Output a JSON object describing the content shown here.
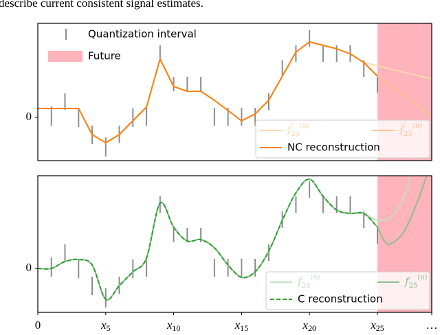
{
  "text_above": "describe current consistent signal estimates.",
  "chart_data": [
    {
      "type": "line",
      "xlim": [
        0,
        29
      ],
      "ylim": [
        -1.26,
        2.74
      ],
      "yticks": [
        0
      ],
      "grid": false,
      "intervals": {
        "name": "Quantization interval",
        "color": "#8c8c8c",
        "x": [
          1,
          2,
          3,
          4,
          5,
          6,
          7,
          8,
          9,
          10,
          11,
          12,
          13,
          14,
          15,
          16,
          17,
          18,
          19,
          20,
          21,
          22,
          23,
          24,
          25
        ],
        "low": [
          -0.24,
          0.22,
          -0.28,
          -0.78,
          -1.14,
          -0.74,
          -0.28,
          -0.24,
          1.62,
          0.76,
          0.76,
          0.76,
          -0.24,
          -0.24,
          -0.24,
          -0.24,
          0.22,
          1.18,
          1.62,
          2.06,
          1.62,
          1.62,
          1.62,
          1.18,
          0.72
        ],
        "high": [
          0.32,
          0.7,
          0.26,
          -0.24,
          -0.58,
          -0.24,
          0.26,
          0.28,
          2.1,
          1.18,
          1.18,
          1.18,
          0.28,
          0.28,
          0.28,
          0.28,
          0.7,
          1.66,
          2.1,
          2.54,
          2.1,
          2.1,
          2.1,
          1.66,
          1.18
        ]
      },
      "future": {
        "name": "Future",
        "start": 25,
        "color": "#ffb3ba"
      },
      "series": [
        {
          "name": "f̃",
          "name_sub": "24",
          "name_sup": "(n)",
          "color": "#fdd8b0",
          "style": "solid",
          "legend_row": 0,
          "x": [
            0,
            1,
            2,
            3,
            4,
            5,
            6,
            7,
            8,
            9,
            10,
            11,
            12,
            13,
            14,
            15,
            16,
            17,
            18,
            19,
            20,
            21,
            22,
            23,
            24,
            29
          ],
          "values": [
            0.26,
            0.26,
            0.26,
            0.26,
            -0.5,
            -0.74,
            -0.5,
            -0.1,
            0.3,
            1.7,
            0.9,
            0.76,
            0.76,
            0.5,
            0.2,
            -0.1,
            0.1,
            0.5,
            1.2,
            1.9,
            2.2,
            2.1,
            2.0,
            1.85,
            1.6,
            1.12
          ]
        },
        {
          "name": "f̃",
          "name_sub": "25",
          "name_sup": "(n)",
          "color": "#fcc590",
          "style": "solid",
          "legend_row": 0,
          "x": [
            0,
            1,
            2,
            3,
            4,
            5,
            6,
            7,
            8,
            9,
            10,
            11,
            12,
            13,
            14,
            15,
            16,
            17,
            18,
            19,
            20,
            21,
            22,
            23,
            24,
            25,
            29
          ],
          "values": [
            0.26,
            0.26,
            0.26,
            0.26,
            -0.5,
            -0.74,
            -0.5,
            -0.1,
            0.3,
            1.7,
            0.9,
            0.76,
            0.76,
            0.5,
            0.2,
            -0.1,
            0.1,
            0.5,
            1.2,
            1.9,
            2.2,
            2.1,
            2.0,
            1.85,
            1.6,
            1.2,
            0.06
          ]
        },
        {
          "name": "NC reconstruction",
          "color": "#ff7f0e",
          "style": "solid",
          "legend_row": 1,
          "x": [
            0,
            1,
            2,
            3,
            4,
            5,
            6,
            7,
            8,
            9,
            10,
            11,
            12,
            13,
            14,
            15,
            16,
            17,
            18,
            19,
            20,
            21,
            22,
            23,
            24,
            25
          ],
          "values": [
            0.26,
            0.26,
            0.26,
            0.26,
            -0.5,
            -0.74,
            -0.5,
            -0.1,
            0.3,
            1.7,
            0.9,
            0.76,
            0.76,
            0.5,
            0.2,
            -0.1,
            0.1,
            0.5,
            1.2,
            1.9,
            2.2,
            2.1,
            2.0,
            1.85,
            1.6,
            1.2
          ]
        }
      ]
    },
    {
      "type": "line",
      "smooth": true,
      "xlim": [
        0,
        29
      ],
      "ylim": [
        -1.28,
        2.7
      ],
      "yticks": [
        0
      ],
      "grid": false,
      "xticks": [
        {
          "value": 0,
          "label": "0"
        },
        {
          "value": 5,
          "label": "x",
          "sub": "5"
        },
        {
          "value": 10,
          "label": "x",
          "sub": "10"
        },
        {
          "value": 15,
          "label": "x",
          "sub": "15"
        },
        {
          "value": 20,
          "label": "x",
          "sub": "20"
        },
        {
          "value": 25,
          "label": "x",
          "sub": "25"
        },
        {
          "value": 29,
          "label": "…"
        }
      ],
      "intervals": {
        "color": "#8c8c8c",
        "x": [
          1,
          2,
          3,
          4,
          5,
          6,
          7,
          8,
          9,
          10,
          11,
          12,
          13,
          14,
          15,
          16,
          17,
          18,
          19,
          20,
          21,
          22,
          23,
          24,
          25
        ],
        "low": [
          -0.24,
          0.22,
          -0.28,
          -0.78,
          -1.14,
          -0.74,
          -0.28,
          -0.24,
          1.62,
          0.76,
          0.76,
          0.76,
          -0.24,
          -0.24,
          -0.24,
          -0.24,
          0.22,
          1.18,
          1.62,
          2.06,
          1.62,
          1.62,
          1.62,
          1.18,
          0.72
        ],
        "high": [
          0.32,
          0.7,
          0.26,
          -0.24,
          -0.58,
          -0.24,
          0.26,
          0.28,
          2.1,
          1.18,
          1.18,
          1.18,
          0.28,
          0.28,
          0.28,
          0.28,
          0.7,
          1.66,
          2.1,
          2.54,
          2.1,
          2.1,
          2.1,
          1.66,
          1.18
        ]
      },
      "future": {
        "start": 25,
        "color": "#ffb3ba"
      },
      "series": [
        {
          "name": "f",
          "name_sub": "24",
          "name_sup": "(n)",
          "color": "#c3dfc3",
          "style": "solid",
          "legend_row": 0,
          "x": [
            0,
            1,
            2,
            3,
            4,
            5,
            6,
            7,
            8,
            9,
            10,
            11,
            12,
            13,
            14,
            15,
            16,
            17,
            18,
            19,
            20,
            21,
            22,
            23,
            24,
            25,
            26,
            27,
            27.5
          ],
          "values": [
            0,
            0,
            0.2,
            0.26,
            0.1,
            -0.9,
            -0.5,
            -0.1,
            0.3,
            1.9,
            1.2,
            0.8,
            0.84,
            0.6,
            0.1,
            -0.26,
            -0.1,
            0.5,
            1.4,
            2.2,
            2.6,
            2.1,
            1.7,
            1.6,
            1.6,
            1.4,
            1.5,
            2.1,
            2.8
          ]
        },
        {
          "name": "f",
          "name_sub": "25",
          "name_sup": "(n)",
          "color": "#8cbf8c",
          "style": "solid",
          "legend_row": 0,
          "x": [
            0,
            1,
            2,
            3,
            4,
            5,
            6,
            7,
            8,
            9,
            10,
            11,
            12,
            13,
            14,
            15,
            16,
            17,
            18,
            19,
            20,
            21,
            22,
            23,
            24,
            25,
            25.5,
            26,
            27,
            28,
            28.7
          ],
          "values": [
            0,
            0,
            0.2,
            0.26,
            0.1,
            -0.9,
            -0.5,
            -0.1,
            0.3,
            1.9,
            1.2,
            0.8,
            0.84,
            0.6,
            0.1,
            -0.26,
            -0.1,
            0.5,
            1.4,
            2.2,
            2.6,
            2.1,
            1.7,
            1.6,
            1.6,
            1.2,
            0.8,
            0.72,
            1.1,
            2.0,
            2.8
          ]
        },
        {
          "name": "C reconstruction",
          "color": "#2ca02c",
          "style": "dashed",
          "legend_row": 1,
          "x": [
            0,
            1,
            2,
            3,
            4,
            5,
            6,
            7,
            8,
            9,
            10,
            11,
            12,
            13,
            14,
            15,
            16,
            17,
            18,
            19,
            20,
            21,
            22,
            23,
            24,
            25
          ],
          "values": [
            0,
            0,
            0.2,
            0.26,
            0.1,
            -0.9,
            -0.5,
            -0.1,
            0.3,
            1.9,
            1.2,
            0.8,
            0.84,
            0.6,
            0.1,
            -0.26,
            -0.1,
            0.5,
            1.4,
            2.2,
            2.6,
            2.1,
            1.7,
            1.6,
            1.6,
            1.2
          ]
        }
      ]
    }
  ]
}
